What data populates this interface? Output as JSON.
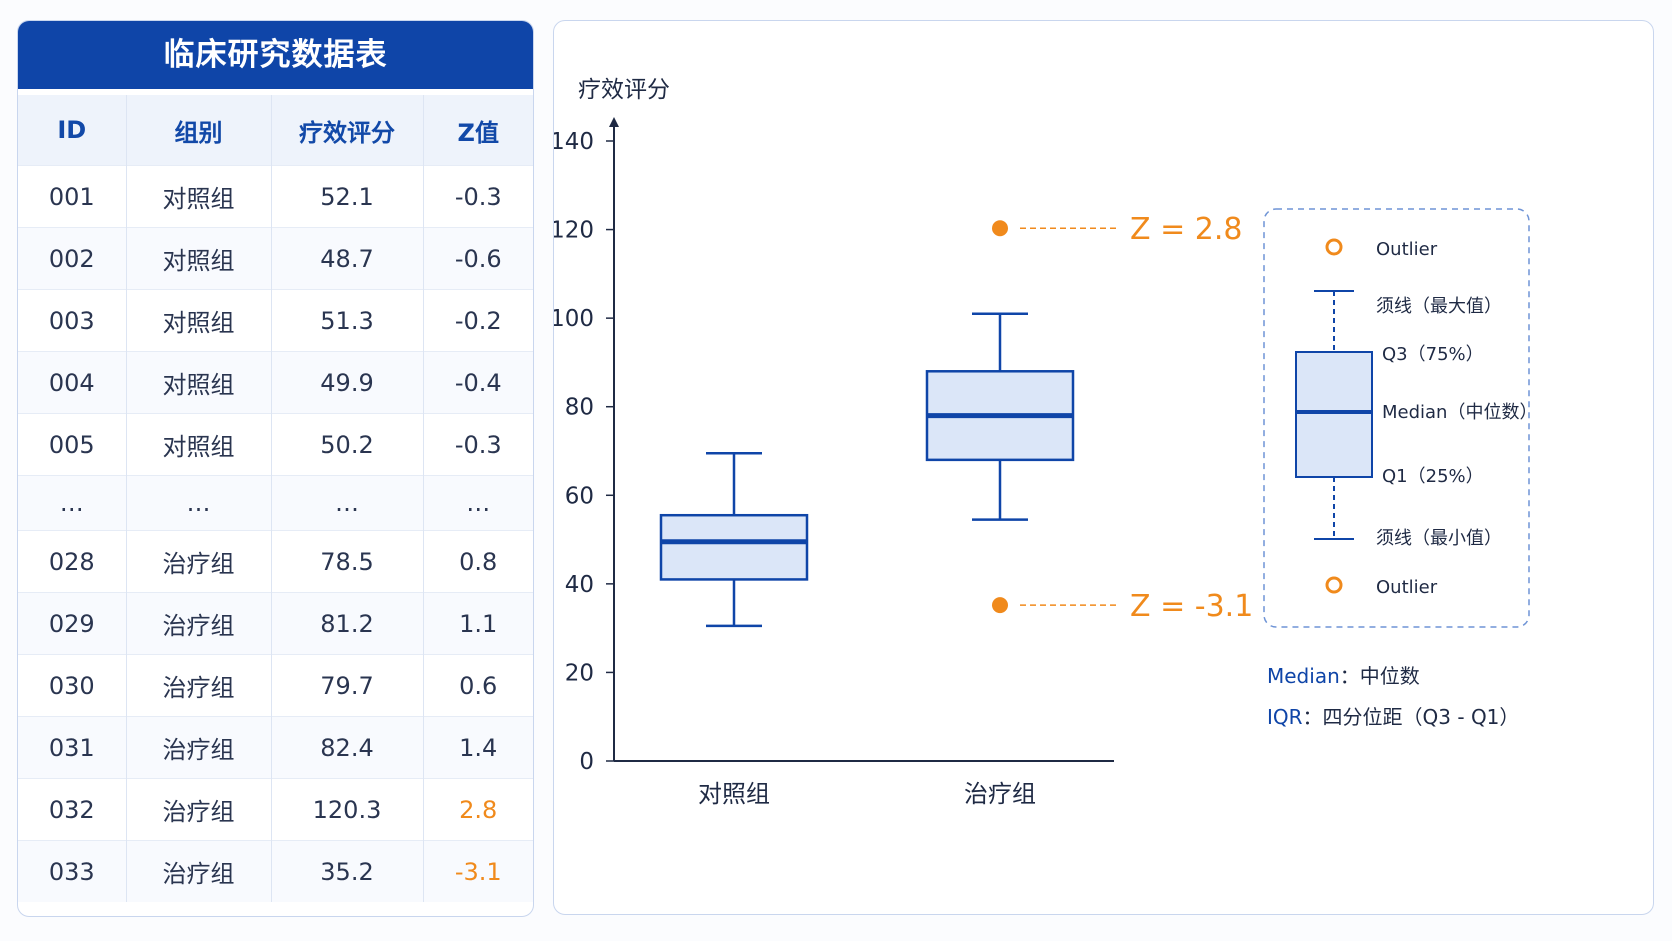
{
  "table": {
    "title": "临床研究数据表",
    "headers": [
      "ID",
      "组别",
      "疗效评分",
      "Z值"
    ],
    "rows": [
      {
        "id": "001",
        "group": "对照组",
        "score": "52.1",
        "z": "-0.3",
        "outlier": false
      },
      {
        "id": "002",
        "group": "对照组",
        "score": "48.7",
        "z": "-0.6",
        "outlier": false
      },
      {
        "id": "003",
        "group": "对照组",
        "score": "51.3",
        "z": "-0.2",
        "outlier": false
      },
      {
        "id": "004",
        "group": "对照组",
        "score": "49.9",
        "z": "-0.4",
        "outlier": false
      },
      {
        "id": "005",
        "group": "对照组",
        "score": "50.2",
        "z": "-0.3",
        "outlier": false
      },
      {
        "id": "…",
        "group": "…",
        "score": "…",
        "z": "…",
        "outlier": false,
        "ellipsis": true
      },
      {
        "id": "028",
        "group": "治疗组",
        "score": "78.5",
        "z": "0.8",
        "outlier": false
      },
      {
        "id": "029",
        "group": "治疗组",
        "score": "81.2",
        "z": "1.1",
        "outlier": false
      },
      {
        "id": "030",
        "group": "治疗组",
        "score": "79.7",
        "z": "0.6",
        "outlier": false
      },
      {
        "id": "031",
        "group": "治疗组",
        "score": "82.4",
        "z": "1.4",
        "outlier": false
      },
      {
        "id": "032",
        "group": "治疗组",
        "score": "120.3",
        "z": "2.8",
        "outlier": true
      },
      {
        "id": "033",
        "group": "治疗组",
        "score": "35.2",
        "z": "-3.1",
        "outlier": true
      }
    ]
  },
  "colors": {
    "primary": "#0f45a8",
    "box_fill": "#dbe6f8",
    "outlier": "#f08a1c",
    "axis": "#1f2a44"
  },
  "chart_data": {
    "type": "boxplot",
    "ylabel": "疗效评分",
    "ylim": [
      0,
      140
    ],
    "yticks": [
      0,
      20,
      40,
      60,
      80,
      100,
      120,
      140
    ],
    "categories": [
      "对照组",
      "治疗组"
    ],
    "boxes": [
      {
        "category": "对照组",
        "whisker_low": 30.5,
        "q1": 41,
        "median": 49.5,
        "q3": 55.5,
        "whisker_high": 69.5
      },
      {
        "category": "治疗组",
        "whisker_low": 54.5,
        "q1": 68,
        "median": 78,
        "q3": 88,
        "whisker_high": 101
      }
    ],
    "outliers": [
      {
        "category": "治疗组",
        "value": 120.3,
        "label": "Z = 2.8"
      },
      {
        "category": "治疗组",
        "value": 35.2,
        "label": "Z = -3.1"
      }
    ],
    "legend": {
      "outlier_top": "Outlier",
      "whisker_max": "须线（最大值）",
      "q3": "Q3（75%）",
      "median": "Median（中位数）",
      "q1": "Q1（25%）",
      "whisker_min": "须线（最小值）",
      "outlier_bottom": "Outlier"
    },
    "notes": [
      {
        "term": "Median",
        "desc": "：中位数"
      },
      {
        "term": "IQR",
        "desc": "：四分位距（Q3 - Q1）"
      }
    ]
  }
}
